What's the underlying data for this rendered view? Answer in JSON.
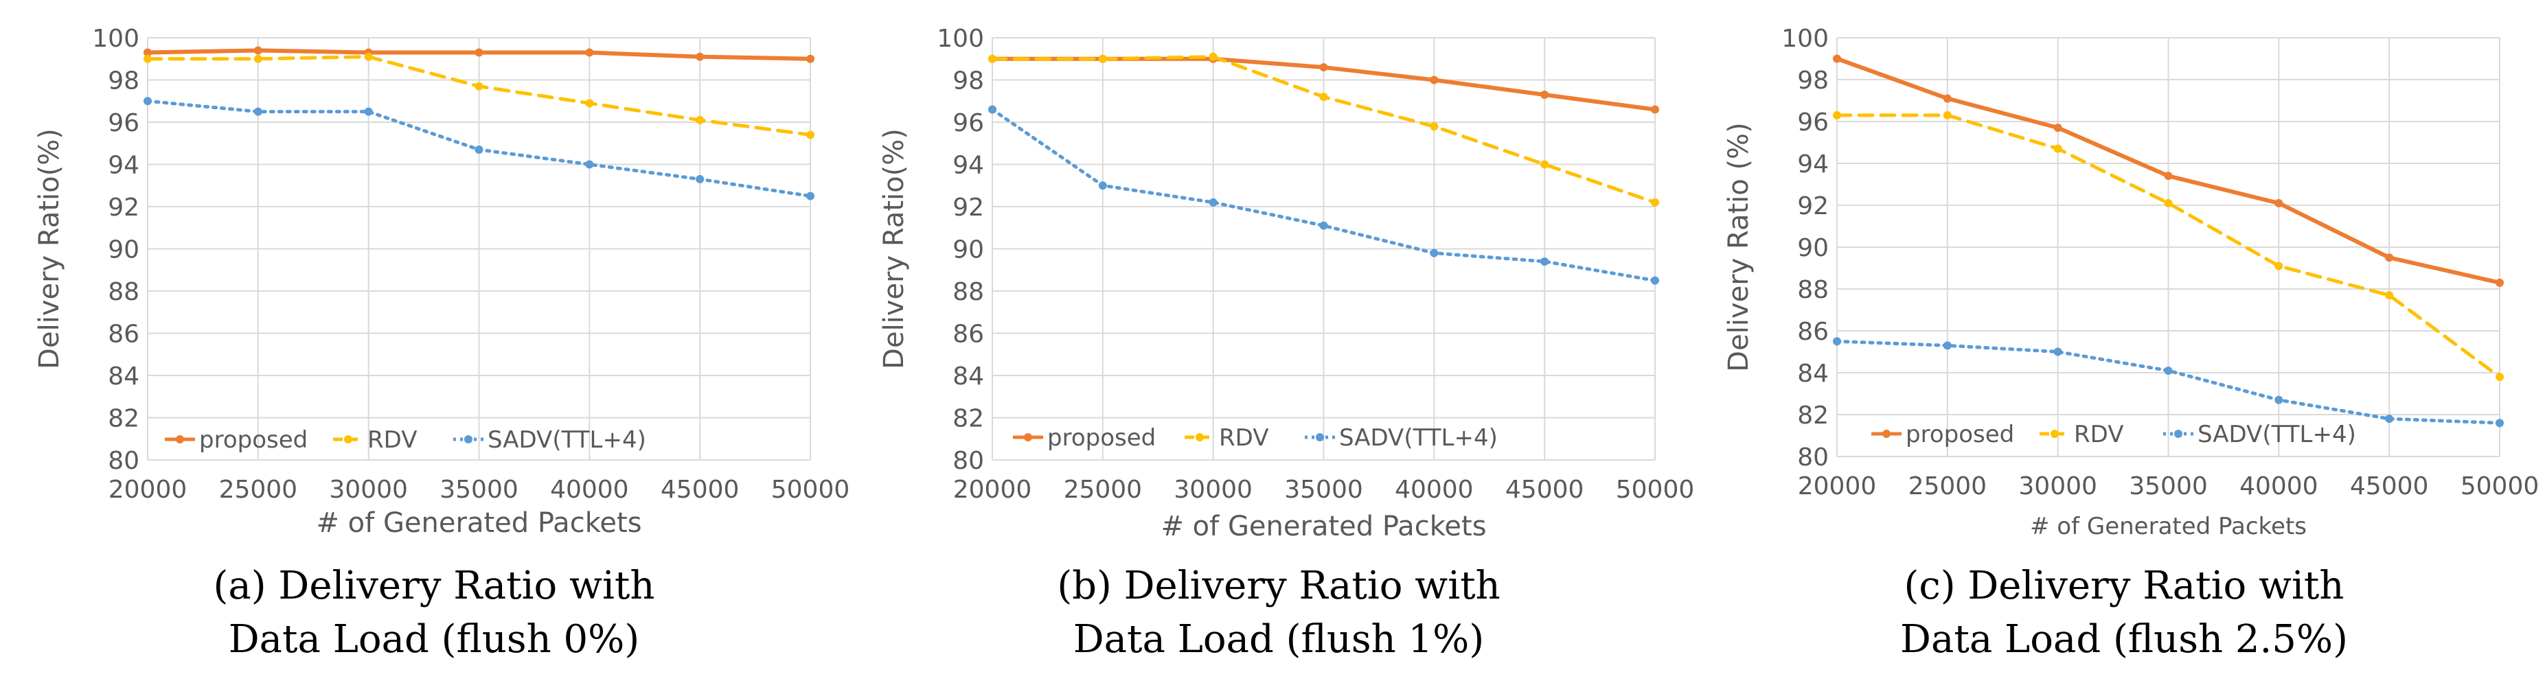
{
  "colors": {
    "proposed": "#ED7D31",
    "rdv": "#FFC000",
    "sadv": "#5B9BD5",
    "grid": "#D9D9D9",
    "axis_text": "#595959"
  },
  "chart_data": [
    {
      "type": "line",
      "ylabel": "Delivery Ratio(%)",
      "xlabel": "# of Generated Packets",
      "x": [
        20000,
        25000,
        30000,
        35000,
        40000,
        45000,
        50000
      ],
      "xticks": [
        "20000",
        "25000",
        "30000",
        "35000",
        "40000",
        "45000",
        "50000"
      ],
      "yticks": [
        "80",
        "82",
        "84",
        "86",
        "88",
        "90",
        "92",
        "94",
        "96",
        "98",
        "100"
      ],
      "ylim": [
        80,
        100
      ],
      "grid": true,
      "legend": "bottom-left",
      "series": [
        {
          "name": "proposed",
          "style": "solid",
          "values": [
            99.3,
            99.4,
            99.3,
            99.3,
            99.3,
            99.1,
            99.0
          ]
        },
        {
          "name": "RDV",
          "style": "dashed",
          "values": [
            99.0,
            99.0,
            99.1,
            97.7,
            96.9,
            96.1,
            95.4
          ]
        },
        {
          "name": "SADV(TTL+4)",
          "style": "dotted",
          "values": [
            97.0,
            96.5,
            96.5,
            94.7,
            94.0,
            93.3,
            92.5
          ]
        }
      ],
      "caption_line1": "(a) Delivery Ratio with",
      "caption_line2": "Data Load (flush 0%)"
    },
    {
      "type": "line",
      "ylabel": "Delivery Ratio(%)",
      "xlabel": "# of Generated Packets",
      "x": [
        20000,
        25000,
        30000,
        35000,
        40000,
        45000,
        50000
      ],
      "xticks": [
        "20000",
        "25000",
        "30000",
        "35000",
        "40000",
        "45000",
        "50000"
      ],
      "yticks": [
        "80",
        "82",
        "84",
        "86",
        "88",
        "90",
        "92",
        "94",
        "96",
        "98",
        "100"
      ],
      "ylim": [
        80,
        100
      ],
      "grid": true,
      "legend": "bottom-left",
      "series": [
        {
          "name": "proposed",
          "style": "solid",
          "values": [
            99.0,
            99.0,
            99.0,
            98.6,
            98.0,
            97.3,
            96.6
          ]
        },
        {
          "name": "RDV",
          "style": "dashed",
          "values": [
            99.0,
            99.0,
            99.1,
            97.2,
            95.8,
            94.0,
            92.2
          ]
        },
        {
          "name": "SADV(TTL+4)",
          "style": "dotted",
          "values": [
            96.6,
            93.0,
            92.2,
            91.1,
            89.8,
            89.4,
            88.5
          ]
        }
      ],
      "caption_line1": "(b) Delivery Ratio with",
      "caption_line2": "Data Load (flush 1%)"
    },
    {
      "type": "line",
      "ylabel": "Delivery Ratio (%)",
      "xlabel": "# of Generated Packets",
      "x": [
        20000,
        25000,
        30000,
        35000,
        40000,
        45000,
        50000
      ],
      "xticks": [
        "20000",
        "25000",
        "30000",
        "35000",
        "40000",
        "45000",
        "50000"
      ],
      "yticks": [
        "80",
        "82",
        "84",
        "86",
        "88",
        "90",
        "92",
        "94",
        "96",
        "98",
        "100"
      ],
      "ylim": [
        80,
        100
      ],
      "grid": true,
      "legend": "bottom-left",
      "series": [
        {
          "name": "proposed",
          "style": "solid",
          "values": [
            99.0,
            97.1,
            95.7,
            93.4,
            92.1,
            89.5,
            88.3
          ]
        },
        {
          "name": "RDV",
          "style": "dashed",
          "values": [
            96.3,
            96.3,
            94.7,
            92.1,
            89.1,
            87.7,
            83.8
          ]
        },
        {
          "name": "SADV(TTL+4)",
          "style": "dotted",
          "values": [
            85.5,
            85.3,
            85.0,
            84.1,
            82.7,
            81.8,
            81.6
          ]
        }
      ],
      "caption_line1": "(c) Delivery Ratio with",
      "caption_line2": "Data Load (flush 2.5%)"
    }
  ]
}
